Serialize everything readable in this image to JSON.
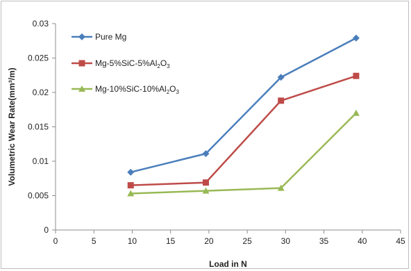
{
  "chart_data": {
    "type": "line",
    "title": "",
    "xlabel": "Load in N",
    "ylabel": "Volumetric Wear Rate(mm³/m)",
    "xlim": [
      0,
      45
    ],
    "ylim": [
      0,
      0.03
    ],
    "x_ticks": [
      "0",
      "5",
      "10",
      "15",
      "20",
      "25",
      "30",
      "35",
      "40",
      "45"
    ],
    "y_ticks": [
      "0",
      "0.005",
      "0.01",
      "0.015",
      "0.02",
      "0.025",
      "0.03"
    ],
    "grid": false,
    "legend_position": "top-left",
    "series": [
      {
        "name": "Pure Mg",
        "marker": "diamond",
        "color": "#4a7ebb",
        "x": [
          9.8,
          19.6,
          29.4,
          39.2
        ],
        "y": [
          0.0084,
          0.0111,
          0.0222,
          0.0279
        ]
      },
      {
        "name": "Mg-5%SiC-5%Al2O3",
        "marker": "square",
        "color": "#be4b48",
        "x": [
          9.8,
          19.6,
          29.4,
          39.2
        ],
        "y": [
          0.0065,
          0.0069,
          0.0188,
          0.0224
        ]
      },
      {
        "name": "Mg-10%SiC-10%Al2O3",
        "marker": "triangle",
        "color": "#98b954",
        "x": [
          9.8,
          19.6,
          29.4,
          39.2
        ],
        "y": [
          0.0053,
          0.0057,
          0.0061,
          0.017
        ]
      }
    ]
  }
}
